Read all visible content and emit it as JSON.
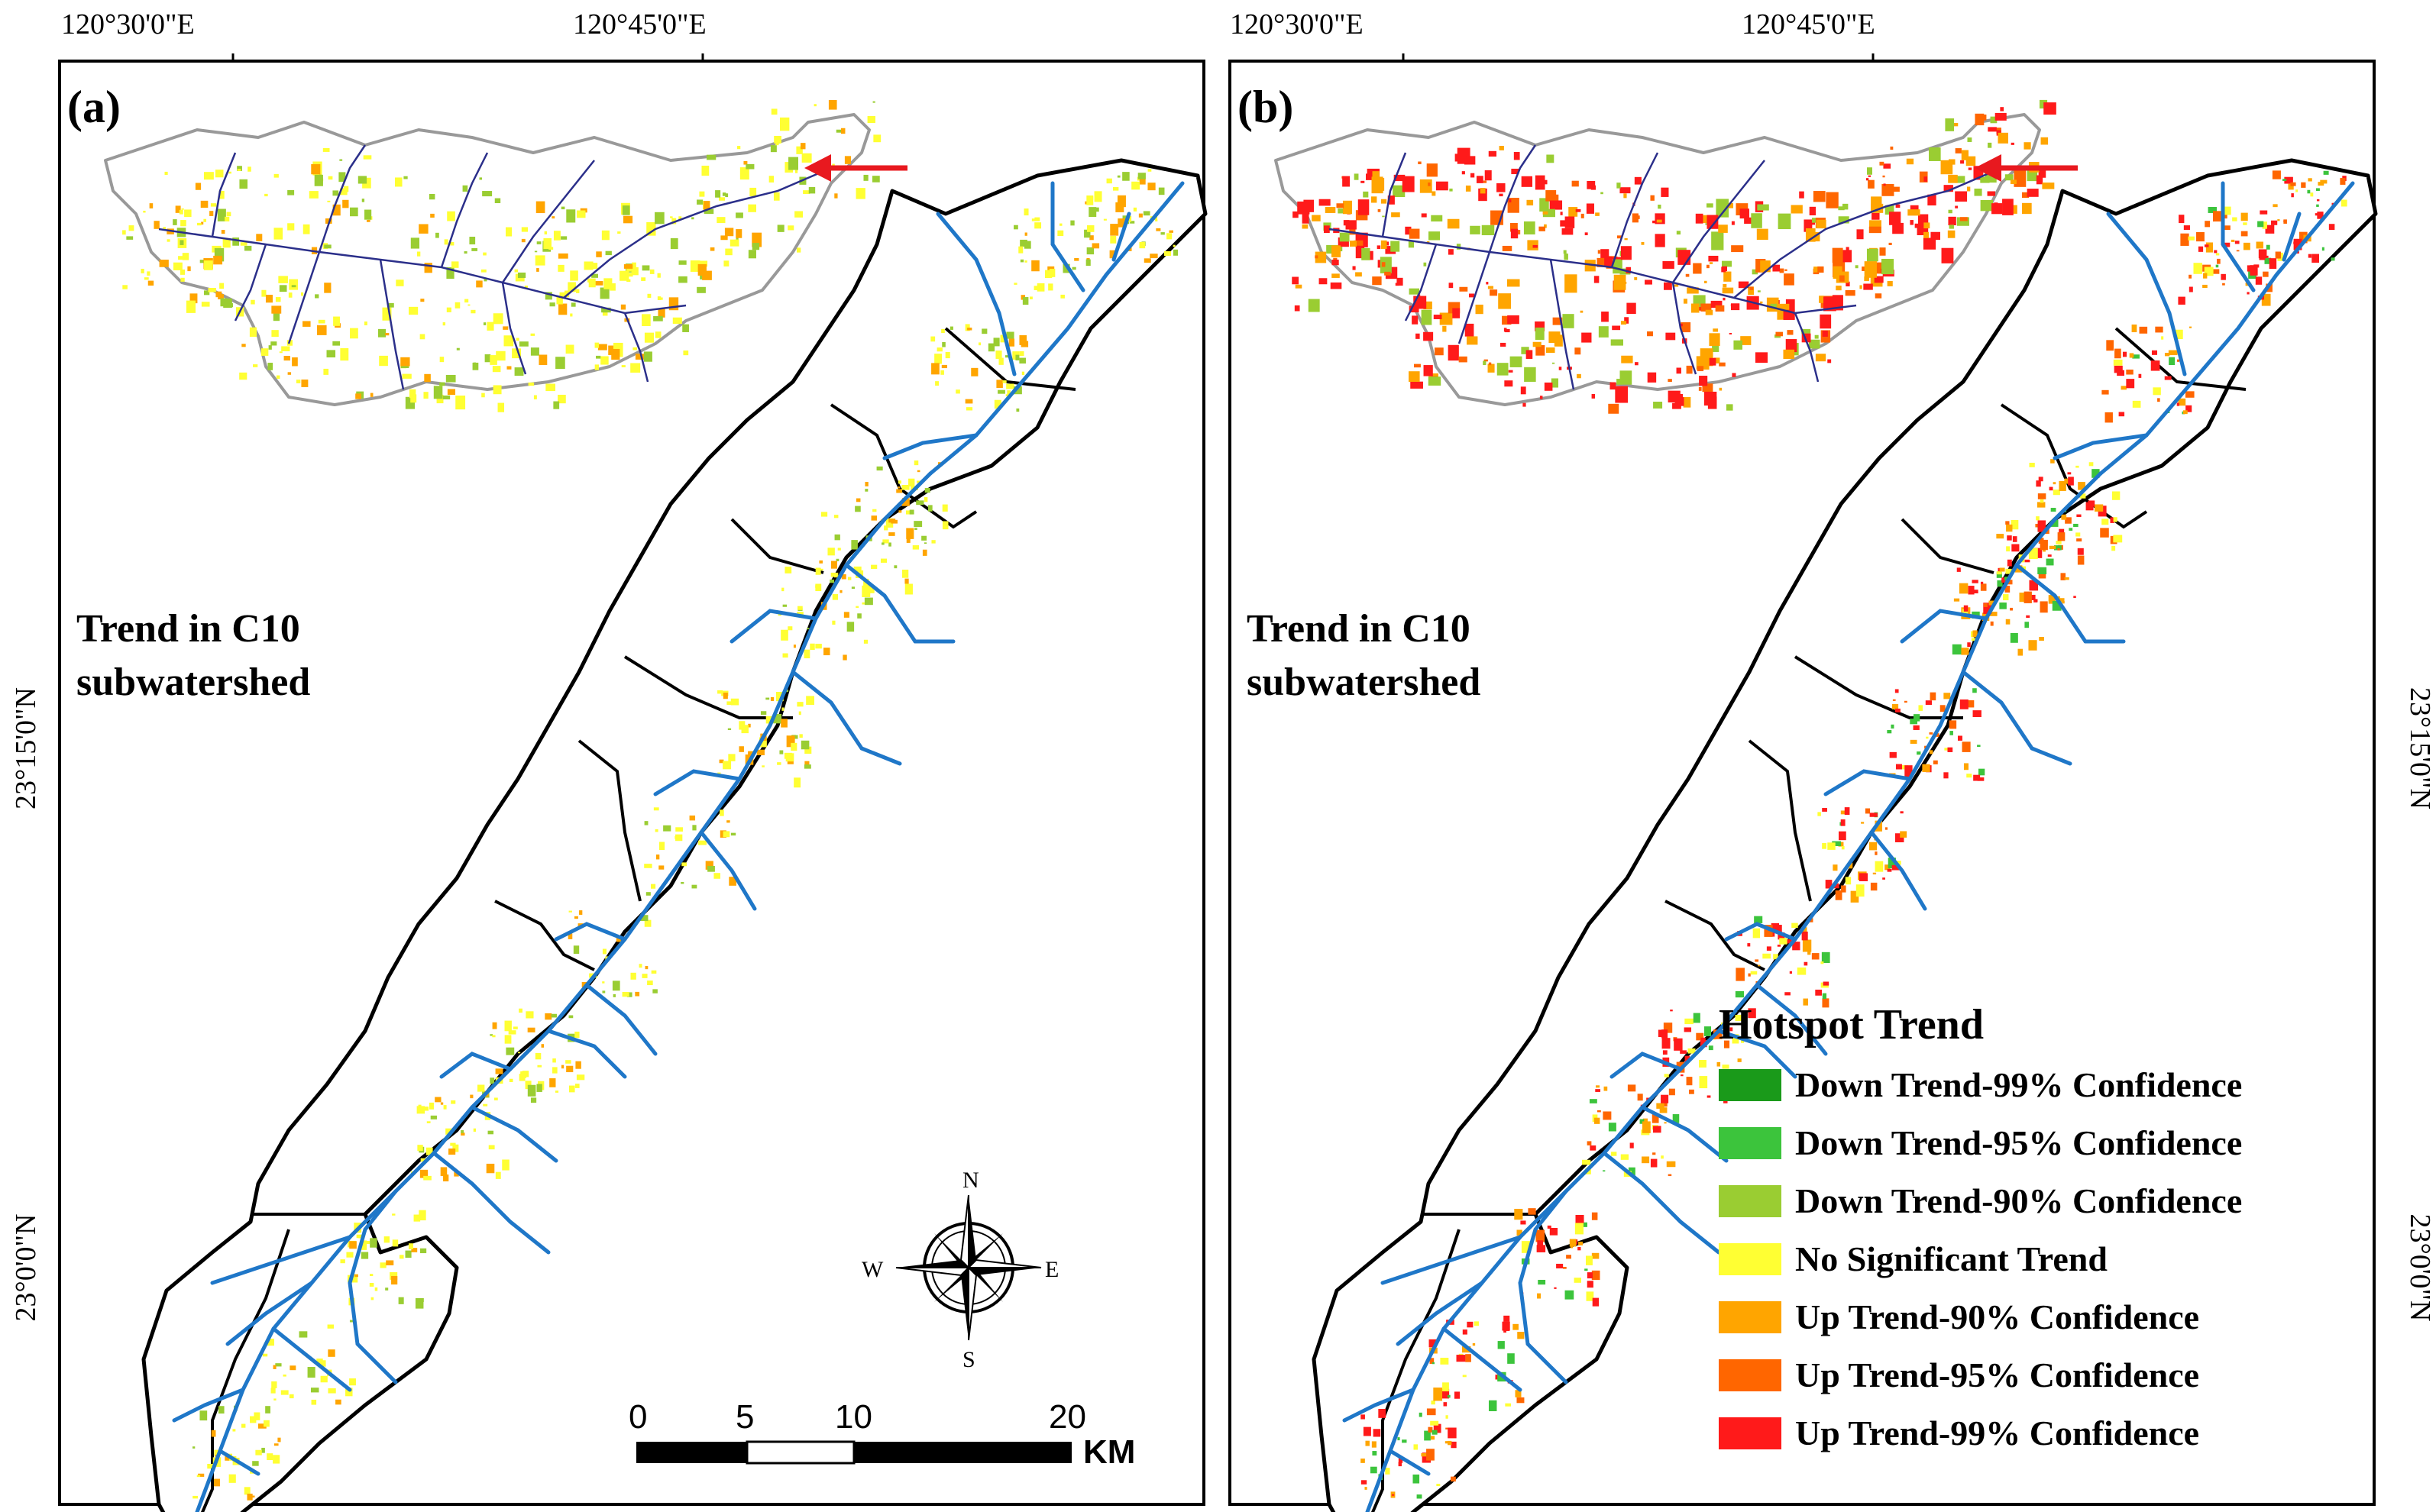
{
  "coordinates": {
    "top_left": "120°30'0\"E",
    "top_right": "120°45'0\"E",
    "lat_upper": "23°15'0\"N",
    "lat_lower": "23°0'0\"N"
  },
  "panels": [
    {
      "label": "(a)",
      "inset_title_line1": "Trend in C10",
      "inset_title_line2": "subwatershed"
    },
    {
      "label": "(b)",
      "inset_title_line1": "Trend in C10",
      "inset_title_line2": "subwatershed"
    }
  ],
  "compass": {
    "n": "N",
    "s": "S",
    "e": "E",
    "w": "W"
  },
  "scale_bar": {
    "ticks": [
      "0",
      "5",
      "10",
      "20"
    ],
    "unit": "KM"
  },
  "legend": {
    "title": "Hotspot Trend",
    "items": [
      {
        "label": "Down Trend-99% Confidence",
        "color": "#1a9a1a"
      },
      {
        "label": "Down Trend-95% Confidence",
        "color": "#3cc43c"
      },
      {
        "label": "Down Trend-90% Confidence",
        "color": "#9acd32"
      },
      {
        "label": "No Significant Trend",
        "color": "#ffff33"
      },
      {
        "label": "Up Trend-90% Confidence",
        "color": "#ffa500"
      },
      {
        "label": "Up Trend-95% Confidence",
        "color": "#ff6600"
      },
      {
        "label": "Up Trend-99% Confidence",
        "color": "#ff1a1a"
      }
    ]
  },
  "colors": {
    "river": "#1f77c8",
    "inset_river": "#2b2f8a",
    "boundary": "#000000",
    "inset_boundary": "#999999",
    "arrow": "#e8191f"
  }
}
